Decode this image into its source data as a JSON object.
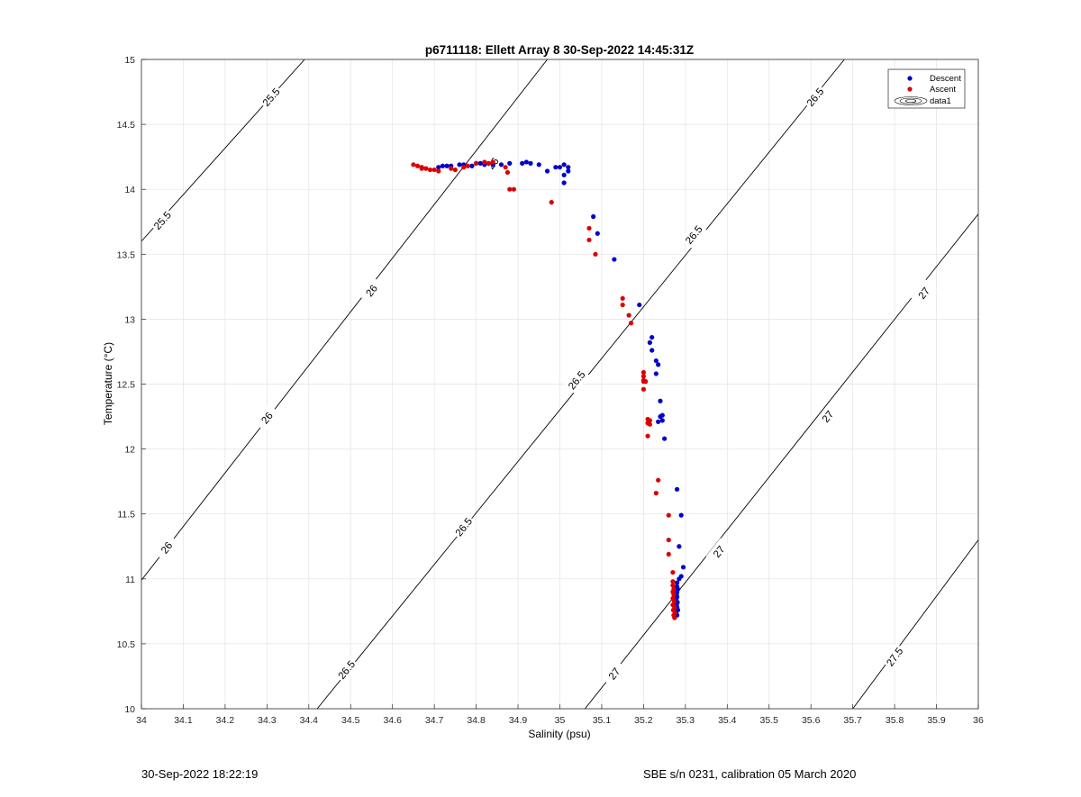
{
  "chart_data": {
    "type": "scatter",
    "title": "p6711118: Ellett Array 8 30-Sep-2022 14:45:31Z",
    "xlabel": "Salinity (psu)",
    "ylabel": "Temperature (°C)",
    "xlim": [
      34,
      36
    ],
    "ylim": [
      10,
      15
    ],
    "xticks": [
      34,
      34.1,
      34.2,
      34.3,
      34.4,
      34.5,
      34.6,
      34.7,
      34.8,
      34.9,
      35,
      35.1,
      35.2,
      35.3,
      35.4,
      35.5,
      35.6,
      35.7,
      35.8,
      35.9,
      36
    ],
    "xtick_labels": [
      "34",
      "34.1",
      "34.2",
      "34.3",
      "34.4",
      "34.5",
      "34.6",
      "34.7",
      "34.8",
      "34.9",
      "35",
      "35.1",
      "35.2",
      "35.3",
      "35.4",
      "35.5",
      "35.6",
      "35.7",
      "35.8",
      "35.9",
      "36"
    ],
    "yticks": [
      10,
      10.5,
      11,
      11.5,
      12,
      12.5,
      13,
      13.5,
      14,
      14.5,
      15
    ],
    "ytick_labels": [
      "10",
      "10.5",
      "11",
      "11.5",
      "12",
      "12.5",
      "13",
      "13.5",
      "14",
      "14.5",
      "15"
    ],
    "grid": true,
    "legend_position": "top-right",
    "legend": [
      "Descent",
      "Ascent",
      "data1"
    ],
    "series": [
      {
        "name": "Descent",
        "color": "#0000cc",
        "points": [
          [
            34.71,
            14.17
          ],
          [
            34.72,
            14.18
          ],
          [
            34.73,
            14.18
          ],
          [
            34.74,
            14.18
          ],
          [
            34.76,
            14.19
          ],
          [
            34.77,
            14.19
          ],
          [
            34.79,
            14.18
          ],
          [
            34.8,
            14.2
          ],
          [
            34.81,
            14.2
          ],
          [
            34.82,
            14.19
          ],
          [
            34.84,
            14.19
          ],
          [
            34.86,
            14.19
          ],
          [
            34.88,
            14.2
          ],
          [
            34.91,
            14.2
          ],
          [
            34.92,
            14.21
          ],
          [
            34.93,
            14.2
          ],
          [
            34.95,
            14.19
          ],
          [
            34.97,
            14.14
          ],
          [
            34.99,
            14.17
          ],
          [
            35.0,
            14.17
          ],
          [
            35.01,
            14.19
          ],
          [
            35.02,
            14.17
          ],
          [
            35.02,
            14.14
          ],
          [
            35.01,
            14.11
          ],
          [
            35.01,
            14.05
          ],
          [
            35.08,
            13.79
          ],
          [
            35.09,
            13.66
          ],
          [
            35.13,
            13.46
          ],
          [
            35.19,
            13.11
          ],
          [
            35.22,
            12.86
          ],
          [
            35.215,
            12.82
          ],
          [
            35.22,
            12.76
          ],
          [
            35.23,
            12.68
          ],
          [
            35.235,
            12.65
          ],
          [
            35.23,
            12.58
          ],
          [
            35.24,
            12.37
          ],
          [
            35.245,
            12.26
          ],
          [
            35.24,
            12.25
          ],
          [
            35.245,
            12.22
          ],
          [
            35.235,
            12.21
          ],
          [
            35.25,
            12.08
          ],
          [
            35.28,
            11.69
          ],
          [
            35.29,
            11.49
          ],
          [
            35.285,
            11.25
          ],
          [
            35.295,
            11.09
          ],
          [
            35.29,
            11.02
          ],
          [
            35.285,
            11.0
          ],
          [
            35.28,
            10.97
          ],
          [
            35.28,
            10.94
          ],
          [
            35.282,
            10.92
          ],
          [
            35.28,
            10.9
          ],
          [
            35.279,
            10.88
          ],
          [
            35.28,
            10.86
          ],
          [
            35.278,
            10.84
          ],
          [
            35.281,
            10.82
          ],
          [
            35.279,
            10.8
          ],
          [
            35.28,
            10.78
          ],
          [
            35.282,
            10.76
          ],
          [
            35.278,
            10.74
          ],
          [
            35.28,
            10.72
          ]
        ]
      },
      {
        "name": "Ascent",
        "color": "#dd0000",
        "points": [
          [
            34.65,
            14.19
          ],
          [
            34.66,
            14.18
          ],
          [
            34.67,
            14.17
          ],
          [
            34.67,
            14.16
          ],
          [
            34.68,
            14.16
          ],
          [
            34.69,
            14.15
          ],
          [
            34.7,
            14.15
          ],
          [
            34.71,
            14.14
          ],
          [
            34.74,
            14.16
          ],
          [
            34.75,
            14.15
          ],
          [
            34.77,
            14.17
          ],
          [
            34.78,
            14.18
          ],
          [
            34.8,
            14.2
          ],
          [
            34.82,
            14.21
          ],
          [
            34.83,
            14.2
          ],
          [
            34.84,
            14.21
          ],
          [
            34.87,
            14.17
          ],
          [
            34.875,
            14.13
          ],
          [
            34.88,
            14.0
          ],
          [
            34.89,
            14.0
          ],
          [
            34.98,
            13.9
          ],
          [
            35.07,
            13.7
          ],
          [
            35.07,
            13.61
          ],
          [
            35.085,
            13.5
          ],
          [
            35.15,
            13.16
          ],
          [
            35.15,
            13.11
          ],
          [
            35.165,
            13.03
          ],
          [
            35.17,
            12.97
          ],
          [
            35.2,
            12.59
          ],
          [
            35.2,
            12.56
          ],
          [
            35.2,
            12.53
          ],
          [
            35.205,
            12.52
          ],
          [
            35.2,
            12.52
          ],
          [
            35.2,
            12.46
          ],
          [
            35.21,
            12.23
          ],
          [
            35.215,
            12.22
          ],
          [
            35.21,
            12.2
          ],
          [
            35.215,
            12.19
          ],
          [
            35.21,
            12.1
          ],
          [
            35.235,
            11.76
          ],
          [
            35.23,
            11.66
          ],
          [
            35.26,
            11.49
          ],
          [
            35.26,
            11.3
          ],
          [
            35.26,
            11.19
          ],
          [
            35.27,
            11.05
          ],
          [
            35.27,
            10.98
          ],
          [
            35.27,
            10.95
          ],
          [
            35.272,
            10.92
          ],
          [
            35.27,
            10.9
          ],
          [
            35.272,
            10.88
          ],
          [
            35.27,
            10.85
          ],
          [
            35.273,
            10.83
          ],
          [
            35.27,
            10.8
          ],
          [
            35.274,
            10.78
          ],
          [
            35.271,
            10.76
          ],
          [
            35.275,
            10.74
          ],
          [
            35.272,
            10.72
          ],
          [
            35.274,
            10.7
          ]
        ]
      }
    ],
    "contours": [
      {
        "label": "25.5",
        "points": [
          [
            34.0,
            13.6
          ],
          [
            34.39,
            15.0
          ]
        ],
        "labels_at": [
          [
            34.31,
            14.71
          ],
          [
            34.05,
            13.76
          ]
        ]
      },
      {
        "label": "26",
        "points": [
          [
            34.0,
            10.99
          ],
          [
            34.97,
            15.0
          ]
        ],
        "labels_at": [
          [
            34.06,
            11.24
          ],
          [
            34.3,
            12.24
          ],
          [
            34.55,
            13.22
          ],
          [
            34.84,
            14.2
          ]
        ]
      },
      {
        "label": "26.5",
        "points": [
          [
            34.42,
            10.0
          ],
          [
            35.68,
            15.0
          ]
        ],
        "labels_at": [
          [
            34.49,
            10.3
          ],
          [
            34.77,
            11.4
          ],
          [
            35.04,
            12.53
          ],
          [
            35.32,
            13.65
          ],
          [
            35.61,
            14.71
          ]
        ]
      },
      {
        "label": "27",
        "points": [
          [
            35.06,
            10.0
          ],
          [
            36.0,
            13.81
          ]
        ],
        "labels_at": [
          [
            35.13,
            10.27
          ],
          [
            35.38,
            11.21
          ],
          [
            35.64,
            12.25
          ],
          [
            35.87,
            13.2
          ]
        ]
      },
      {
        "label": "27.5",
        "points": [
          [
            35.7,
            10.0
          ],
          [
            36.0,
            11.3
          ]
        ],
        "labels_at": [
          [
            35.8,
            10.4
          ]
        ]
      }
    ]
  },
  "footer": {
    "left": "30-Sep-2022 18:22:19",
    "right": "SBE s/n 0231, calibration 05 March 2020"
  }
}
